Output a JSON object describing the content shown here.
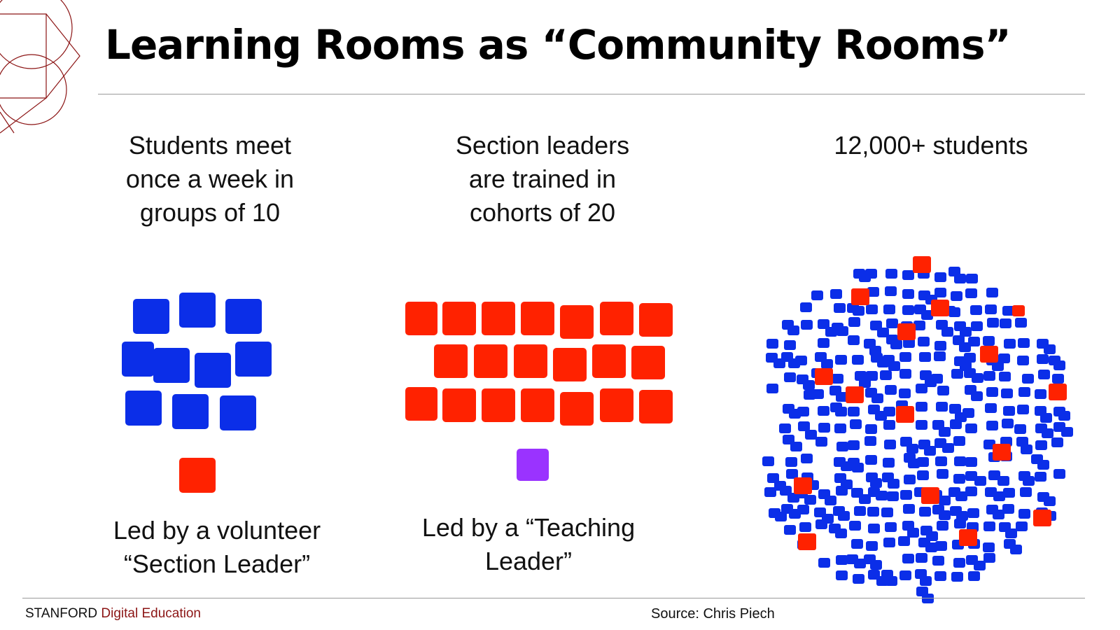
{
  "title": "Learning Rooms as “Community Rooms”",
  "columns": [
    {
      "top_text": "Students meet\nonce a week in\ngroups of 10",
      "bottom_text": "Led by a volunteer\n“Section Leader”"
    },
    {
      "top_text": "Section leaders\nare trained in\ncohorts of 20",
      "bottom_text": "Led by a “Teaching\nLeader”"
    },
    {
      "top_text": "12,000+ students"
    }
  ],
  "footer": {
    "brand": "STANFORD",
    "brand_accent": "Digital Education",
    "source": "Source: Chris Piech"
  },
  "colors": {
    "student": "#0b2ee8",
    "section_leader": "#ff2200",
    "teaching_leader": "#9a33ff",
    "brand_accent": "#8c1515"
  },
  "groups": {
    "section_group": {
      "students": 10,
      "leaders": 1
    },
    "cohort": {
      "section_leaders": 20,
      "teaching_leaders": 1
    }
  }
}
